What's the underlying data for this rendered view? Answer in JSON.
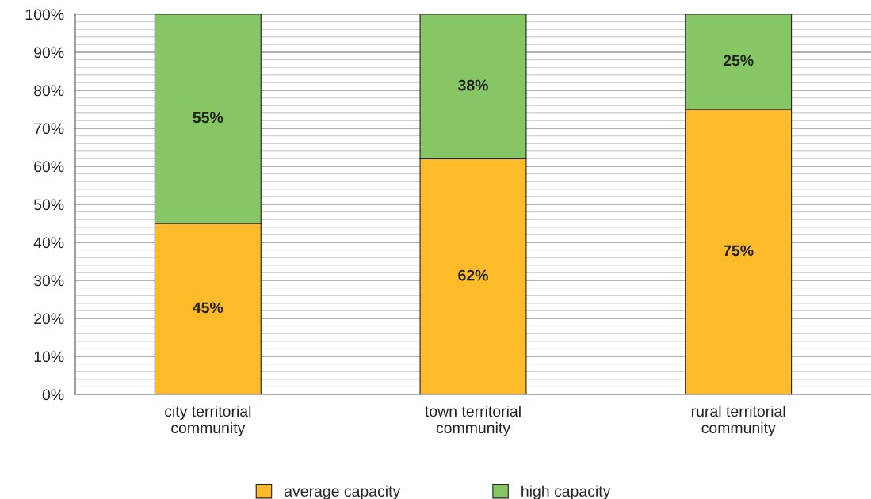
{
  "chart_data": {
    "type": "bar",
    "stacked": true,
    "categories": [
      "city territorial\ncommunity",
      "town territorial\ncommunity",
      "rural territorial\ncommunity"
    ],
    "series": [
      {
        "name": "average capacity",
        "color": "#fdbb2a",
        "values": [
          45,
          62,
          75
        ],
        "value_labels": [
          "45%",
          "62%",
          "75%"
        ]
      },
      {
        "name": "high capacity",
        "color": "#87c664",
        "values": [
          55,
          38,
          25
        ],
        "value_labels": [
          "55%",
          "38%",
          "25%"
        ]
      }
    ],
    "ylim": [
      0,
      100
    ],
    "yticks": [
      {
        "value": 0,
        "label": "0%"
      },
      {
        "value": 10,
        "label": "10%"
      },
      {
        "value": 20,
        "label": "20%"
      },
      {
        "value": 30,
        "label": "30%"
      },
      {
        "value": 40,
        "label": "40%"
      },
      {
        "value": 50,
        "label": "50%"
      },
      {
        "value": 60,
        "label": "60%"
      },
      {
        "value": 70,
        "label": "70%"
      },
      {
        "value": 80,
        "label": "80%"
      },
      {
        "value": 90,
        "label": "90%"
      },
      {
        "value": 100,
        "label": "100%"
      }
    ],
    "grid": "y",
    "legend": "bottom"
  }
}
